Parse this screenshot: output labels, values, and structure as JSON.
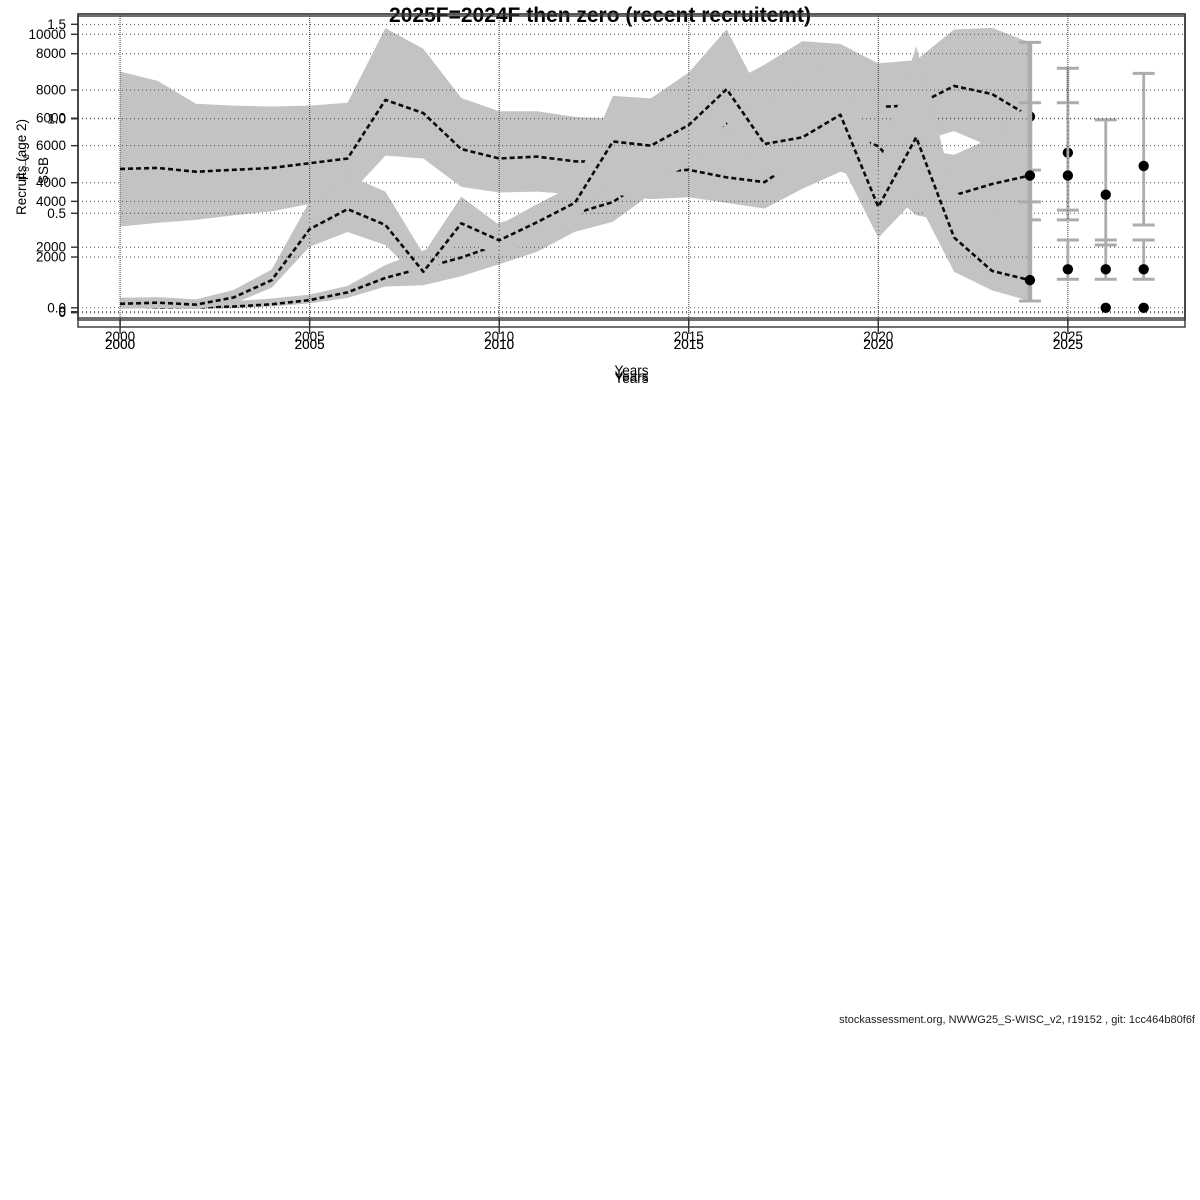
{
  "title": "2025F=2024F then zero (recent recruitemt)",
  "watermark": "stockassessment.org, NWWG25_S-WISC_v2, r19152 , git: 1cc464b80f6f",
  "colors": {
    "band": "#c3c3c3",
    "estimate_line": "#0a0a0a",
    "points": "#000000",
    "error_bars": "#acacac",
    "grid": "#4a4a4a",
    "frame": "#333333"
  },
  "chart_data": [
    {
      "type": "line",
      "name": "ssb",
      "ylabel": "SSB",
      "xlabel": "Years",
      "xticks": [
        2000,
        2005,
        2010,
        2015,
        2020,
        2025
      ],
      "yticks": [
        0,
        2000,
        4000,
        6000,
        8000
      ],
      "ytick_labels": [
        "0",
        "2000",
        "4000",
        "6000",
        "8000"
      ],
      "xlim": [
        1998.89,
        2028.09
      ],
      "ylim": [
        -474,
        9231
      ],
      "grid": true,
      "legend": "none",
      "years": [
        2000,
        2001,
        2002,
        2003,
        2004,
        2005,
        2006,
        2007,
        2008,
        2009,
        2010,
        2011,
        2012,
        2013,
        2014,
        2015,
        2016,
        2017,
        2018,
        2019,
        2020,
        2021,
        2022,
        2023,
        2024
      ],
      "estimate": [
        160,
        130,
        130,
        160,
        230,
        360,
        600,
        1050,
        1360,
        1680,
        2090,
        2340,
        3050,
        3400,
        4200,
        5100,
        5850,
        6400,
        6800,
        6680,
        6350,
        6400,
        7000,
        6750,
        6050
      ],
      "lo": [
        110,
        90,
        90,
        110,
        160,
        260,
        430,
        780,
        820,
        1100,
        1470,
        1860,
        2480,
        2790,
        3650,
        4400,
        5070,
        5540,
        5690,
        5500,
        5200,
        5250,
        5600,
        5100,
        4390
      ],
      "hi": [
        390,
        300,
        290,
        330,
        410,
        530,
        800,
        1450,
        1900,
        2270,
        2760,
        3050,
        3640,
        4100,
        5280,
        6210,
        7040,
        7660,
        8390,
        8300,
        7700,
        7800,
        8750,
        8800,
        8350
      ],
      "forecast": {
        "years": [
          2025,
          2026,
          2027
        ],
        "values": [
          4930,
          3630,
          4520
        ],
        "lo": [
          3150,
          2070,
          2690
        ],
        "hi": [
          7550,
          5950,
          7390
        ]
      }
    },
    {
      "type": "line",
      "name": "fbar",
      "ylabel": "F̄₅₋₈",
      "xlabel": "Years",
      "xticks": [
        2000,
        2005,
        2010,
        2015,
        2020,
        2025
      ],
      "yticks": [
        0,
        0.5,
        1.0,
        1.5
      ],
      "ytick_labels": [
        "0.0",
        "0.5",
        "1.0",
        "1.5"
      ],
      "xlim": [
        1998.89,
        2028.09
      ],
      "ylim": [
        -0.054,
        1.544
      ],
      "grid": true,
      "legend": "none",
      "years": [
        2000,
        2001,
        2002,
        2003,
        2004,
        2005,
        2006,
        2007,
        2008,
        2009,
        2010,
        2011,
        2012,
        2013,
        2014,
        2015,
        2016,
        2017,
        2018,
        2019,
        2020,
        2021,
        2022,
        2023,
        2024
      ],
      "estimate": [
        0.735,
        0.74,
        0.72,
        0.73,
        0.74,
        0.765,
        0.79,
        1.1,
        1.03,
        0.84,
        0.79,
        0.8,
        0.775,
        0.77,
        0.72,
        0.73,
        0.69,
        0.665,
        0.8,
        0.93,
        0.855,
        0.635,
        0.595,
        0.655,
        0.7
      ],
      "lo": [
        0.43,
        0.45,
        0.465,
        0.49,
        0.51,
        0.55,
        0.59,
        0.805,
        0.79,
        0.64,
        0.61,
        0.615,
        0.6,
        0.6,
        0.575,
        0.585,
        0.555,
        0.525,
        0.63,
        0.72,
        0.66,
        0.49,
        0.45,
        0.47,
        0.465
      ],
      "hi": [
        1.25,
        1.2,
        1.08,
        1.07,
        1.065,
        1.07,
        1.085,
        1.48,
        1.37,
        1.11,
        1.04,
        1.04,
        1.01,
        1.0,
        0.96,
        0.97,
        0.92,
        0.87,
        1.005,
        1.2,
        1.1,
        0.84,
        0.81,
        0.9,
        1.085
      ],
      "forecast": {
        "years": [
          2025,
          2026,
          2027
        ],
        "values": [
          0.7,
          0,
          0
        ],
        "lo": [
          0.465,
          null,
          null
        ],
        "hi": [
          1.085,
          null,
          null
        ]
      }
    },
    {
      "type": "line",
      "name": "recruits",
      "ylabel": "Recruits (age 2)",
      "xlabel": "Years",
      "xticks": [
        2000,
        2005,
        2010,
        2015,
        2020,
        2025
      ],
      "yticks": [
        0,
        2000,
        4000,
        6000,
        8000,
        10000
      ],
      "ytick_labels": [
        "0",
        "2000",
        "4000",
        "6000",
        "8000",
        "10000"
      ],
      "xlim": [
        1998.89,
        2028.09
      ],
      "ylim": [
        -262,
        10729
      ],
      "grid": true,
      "legend": "none",
      "years": [
        2000,
        2001,
        2002,
        2003,
        2004,
        2005,
        2006,
        2007,
        2008,
        2009,
        2010,
        2011,
        2012,
        2013,
        2014,
        2015,
        2016,
        2017,
        2018,
        2019,
        2020,
        2021,
        2022,
        2023,
        2024
      ],
      "estimate": [
        320,
        360,
        290,
        550,
        1170,
        3000,
        3720,
        3150,
        1470,
        3210,
        2600,
        3250,
        3950,
        6150,
        6000,
        6740,
        8030,
        6060,
        6300,
        7110,
        3800,
        6300,
        2700,
        1500,
        1170
      ],
      "lo": [
        140,
        160,
        130,
        330,
        900,
        2370,
        2900,
        2430,
        1050,
        2670,
        2010,
        2660,
        3350,
        4750,
        4650,
        5290,
        6840,
        4900,
        5050,
        5400,
        2690,
        4120,
        1470,
        800,
        420
      ],
      "hi": [
        540,
        560,
        480,
        820,
        1550,
        4000,
        4950,
        4350,
        2110,
        4170,
        3150,
        3900,
        4600,
        7790,
        7700,
        8630,
        10180,
        7550,
        8270,
        9340,
        5170,
        9580,
        4330,
        3670,
        3980
      ],
      "forecast": {
        "years": [
          2025,
          2026,
          2027
        ],
        "values": [
          1560,
          1560,
          1560
        ],
        "lo": [
          1200,
          1200,
          1200
        ],
        "hi": [
          2610,
          2610,
          2610
        ]
      }
    }
  ]
}
